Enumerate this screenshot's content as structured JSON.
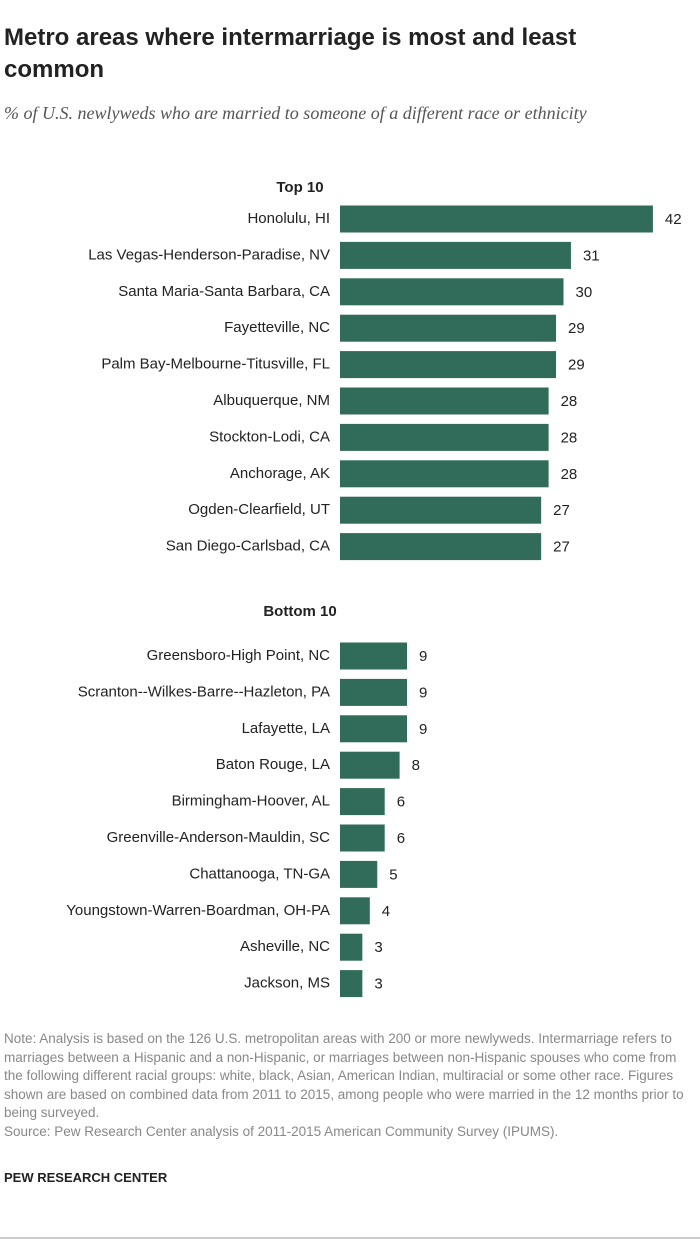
{
  "title": "Metro areas where intermarriage is most and least common",
  "subtitle": "% of U.S. newlyweds who are married to someone of a different race or ethnicity",
  "chart_data": [
    {
      "type": "bar",
      "title": "Top 10",
      "categories": [
        "Honolulu, HI",
        "Las Vegas-Henderson-Paradise, NV",
        "Santa Maria-Santa Barbara, CA",
        "Fayetteville, NC",
        "Palm Bay-Melbourne-Titusville, FL",
        "Albuquerque, NM",
        "Stockton-Lodi, CA",
        "Anchorage, AK",
        "Ogden-Clearfield, UT",
        "San Diego-Carlsbad, CA"
      ],
      "values": [
        42,
        31,
        30,
        29,
        29,
        28,
        28,
        28,
        27,
        27
      ],
      "color": "#316b59"
    },
    {
      "type": "bar",
      "title": "Bottom 10",
      "categories": [
        "Greensboro-High Point, NC",
        "Scranton--Wilkes-Barre--Hazleton, PA",
        "Lafayette, LA",
        "Baton Rouge, LA",
        "Birmingham-Hoover, AL",
        "Greenville-Anderson-Mauldin, SC",
        "Chattanooga, TN-GA",
        "Youngstown-Warren-Boardman, OH-PA",
        "Asheville, NC",
        "Jackson, MS"
      ],
      "values": [
        9,
        9,
        9,
        8,
        6,
        6,
        5,
        4,
        3,
        3
      ],
      "color": "#316b59"
    }
  ],
  "note": "Note: Analysis is based on the 126 U.S. metropolitan areas with 200 or more newlyweds. Intermarriage refers to marriages between a Hispanic and a non-Hispanic, or marriages between non-Hispanic spouses who come from the following different racial groups: white, black, Asian, American Indian, multiracial or some other race. Figures shown are based on combined data from 2011 to 2015, among people who were married in the 12 months prior to being surveyed.",
  "source": "Source: Pew Research Center analysis of 2011-2015 American Community Survey (IPUMS).",
  "credit": "PEW RESEARCH CENTER"
}
